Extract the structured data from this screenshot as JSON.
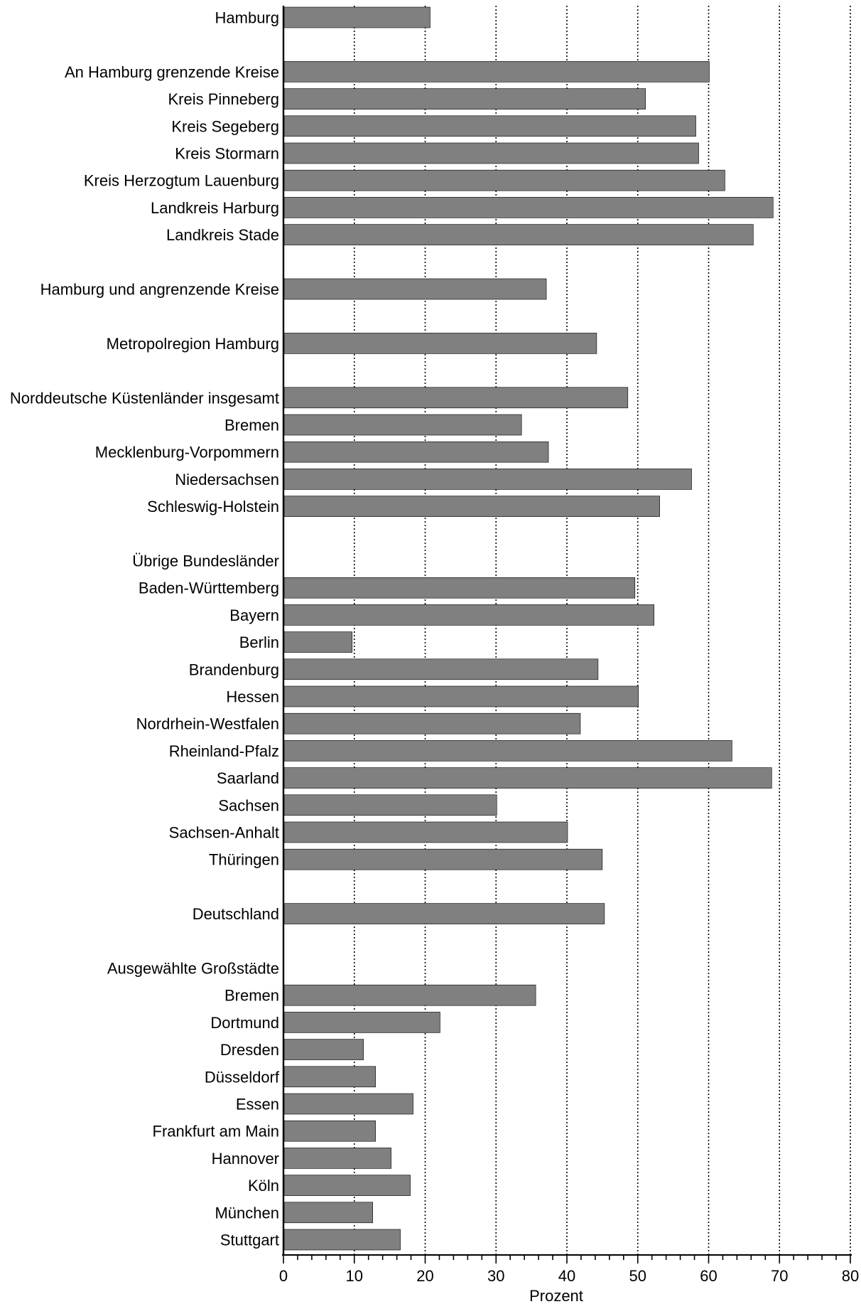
{
  "chart_data": {
    "type": "bar",
    "orientation": "horizontal",
    "xlabel": "Prozent",
    "ylabel": "",
    "xlim": [
      0,
      80
    ],
    "xticks": [
      0,
      10,
      20,
      30,
      40,
      50,
      60,
      70,
      80
    ],
    "grid": "vertical dotted",
    "bar_color": "#808080",
    "categories": [
      "Hamburg",
      "",
      "An Hamburg grenzende Kreise",
      "Kreis Pinneberg",
      "Kreis Segeberg",
      "Kreis Stormarn",
      "Kreis Herzogtum Lauenburg",
      "Landkreis Harburg",
      "Landkreis Stade",
      "",
      "Hamburg und angrenzende Kreise",
      "",
      "Metropolregion Hamburg",
      "",
      "Norddeutsche Küstenländer insgesamt",
      "Bremen",
      "Mecklenburg-Vorpommern",
      "Niedersachsen",
      "Schleswig-Holstein",
      "",
      "Übrige Bundesländer",
      "Baden-Württemberg",
      "Bayern",
      "Berlin",
      "Brandenburg",
      "Hessen",
      "Nordrhein-Westfalen",
      "Rheinland-Pfalz",
      "Saarland",
      "Sachsen",
      "Sachsen-Anhalt",
      "Thüringen",
      "",
      "Deutschland",
      "",
      "Ausgewählte Großstädte",
      "Bremen",
      "Dortmund",
      "Dresden",
      "Düsseldorf",
      "Essen",
      "Frankfurt am Main",
      "Hannover",
      "Köln",
      "München",
      "Stuttgart"
    ],
    "values": [
      20.7,
      null,
      60.1,
      51.1,
      58.2,
      58.6,
      62.3,
      69.1,
      66.3,
      null,
      37.1,
      null,
      44.2,
      null,
      48.6,
      33.6,
      37.4,
      57.6,
      53.1,
      null,
      null,
      49.6,
      52.3,
      9.7,
      44.4,
      50.1,
      41.9,
      63.3,
      68.9,
      30.1,
      40.1,
      45.0,
      null,
      45.3,
      null,
      null,
      35.6,
      22.1,
      11.3,
      13.0,
      18.3,
      13.0,
      15.2,
      17.9,
      12.6,
      16.5
    ]
  }
}
